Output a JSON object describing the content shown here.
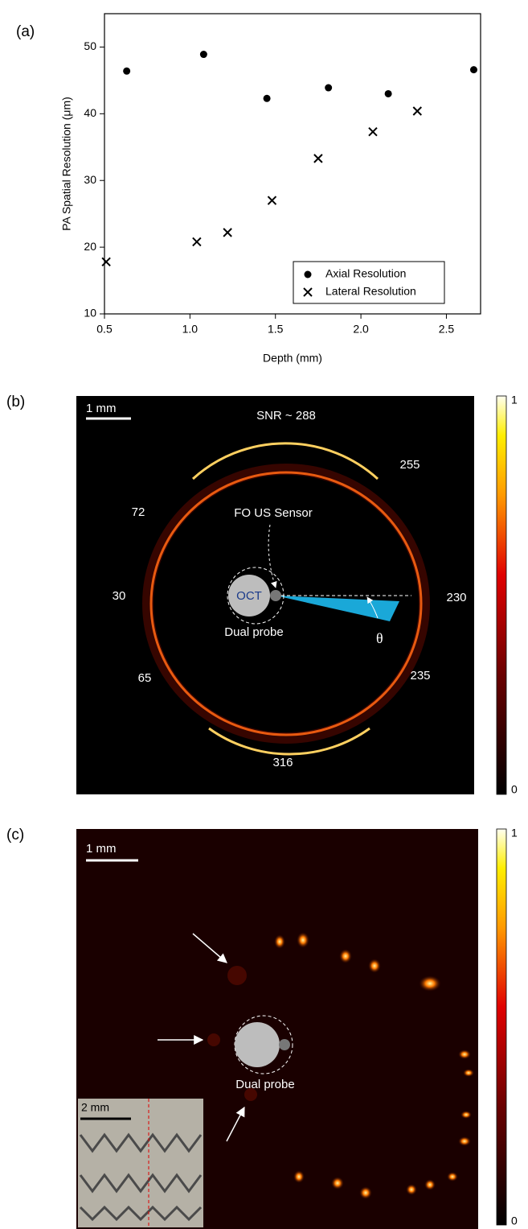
{
  "chart_data": {
    "type": "scatter",
    "label": "(a)",
    "x_label": "Depth (mm)",
    "y_label": "PA Spatial Resolution (μm)",
    "xlim": [
      0.5,
      2.7
    ],
    "ylim": [
      10,
      55
    ],
    "xticks": [
      0.5,
      {
        "value": 1.0,
        "label": "1.0"
      },
      1.5,
      {
        "value": 2.0,
        "label": "2.0"
      },
      2.5
    ],
    "yticks": [
      10,
      20,
      30,
      40,
      50
    ],
    "legend": "lower right",
    "series": [
      {
        "name": "Axial Resolution",
        "marker": "circle",
        "color": "#000000",
        "x": [
          0.63,
          1.08,
          1.45,
          1.81,
          2.16,
          2.66
        ],
        "values": [
          46.4,
          48.9,
          42.3,
          43.9,
          43,
          46.6
        ]
      },
      {
        "name": "Lateral Resolution",
        "marker": "x",
        "color": "#000000",
        "x": [
          0.51,
          1.04,
          1.22,
          1.48,
          1.75,
          2.07,
          2.33
        ],
        "values": [
          17.8,
          20.8,
          22.2,
          27,
          33.3,
          37.3,
          40.4
        ]
      }
    ]
  },
  "panels": {
    "b": {
      "label": "(b)",
      "scale_bar": "1 mm",
      "snr": "SNR ~ 288",
      "sensor": "FO US Sensor",
      "oct": "OCT",
      "probe": "Dual probe",
      "theta": "θ",
      "snr_values": [
        "255",
        "72",
        "30",
        "230",
        "65",
        "235",
        "316"
      ],
      "colorbar": [
        1,
        0
      ]
    },
    "c": {
      "label": "(c)",
      "scale_bar": "1 mm",
      "probe": "Dual probe",
      "inset_scale_bar": "2 mm",
      "colorbar": [
        1,
        0
      ]
    }
  }
}
